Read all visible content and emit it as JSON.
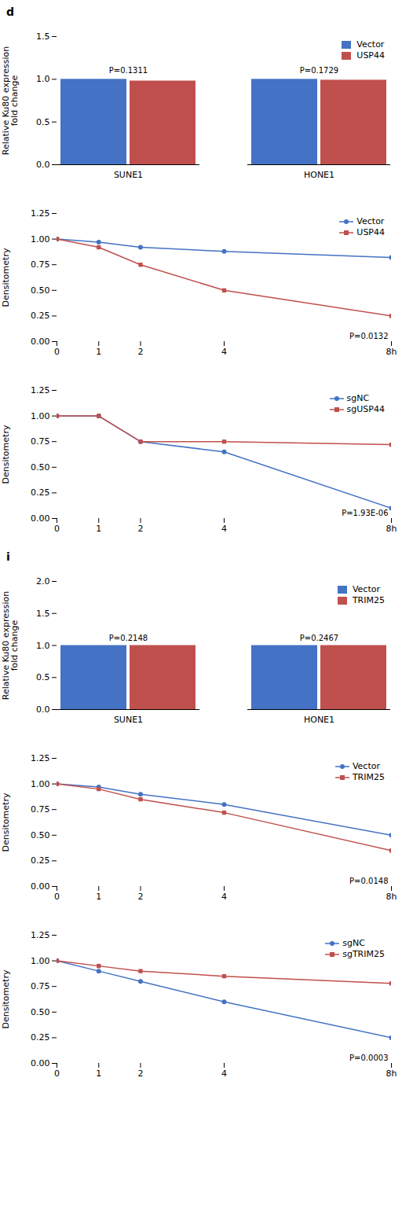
{
  "chart_data": [
    {
      "type": "bar",
      "title": "d",
      "categories": [
        "SUNE1",
        "HONE1"
      ],
      "series": [
        {
          "name": "Vector",
          "color": "#4472c4",
          "values": [
            1.0,
            1.0
          ]
        },
        {
          "name": "USP44",
          "color": "#c0504d",
          "values": [
            0.98,
            0.99
          ]
        }
      ],
      "ylabel": "Relative Ku80 expression\nfold change",
      "ylim": [
        0,
        1.5
      ],
      "yticks": [
        {
          "value": 0,
          "label": "0.0"
        },
        0.5,
        {
          "value": 1.0,
          "label": "1.0"
        },
        1.5
      ],
      "legend": "upper right",
      "annotations": [
        {
          "text": "P=0.1311",
          "x": "SUNE1",
          "y": 1.05
        },
        {
          "text": "P=0.1729",
          "x": "HONE1",
          "y": 1.05
        }
      ]
    },
    {
      "type": "line",
      "x": [
        0,
        1,
        2,
        4,
        8
      ],
      "xlim": [
        0,
        8
      ],
      "xticks": [
        0,
        1,
        2,
        4,
        {
          "value": 8,
          "label": "8h"
        }
      ],
      "series": [
        {
          "name": "Vector",
          "color": "#4472c4",
          "marker": "circle",
          "values": [
            1.0,
            0.97,
            0.92,
            0.88,
            0.82
          ]
        },
        {
          "name": "USP44",
          "color": "#c0504d",
          "marker": "square",
          "values": [
            1.0,
            0.92,
            0.75,
            0.5,
            0.25
          ]
        }
      ],
      "ylabel": "Densitometry",
      "ylim": [
        0,
        1.25
      ],
      "yticks": [
        {
          "value": 0,
          "label": "0.00"
        },
        0.25,
        {
          "value": 0.5,
          "label": "0.50"
        },
        0.75,
        {
          "value": 1.0,
          "label": "1.00"
        },
        1.25
      ],
      "legend": "upper right",
      "annotations": [
        {
          "text": "P=0.0132"
        }
      ]
    },
    {
      "type": "line",
      "x": [
        0,
        1,
        2,
        4,
        8
      ],
      "xlim": [
        0,
        8
      ],
      "xticks": [
        0,
        1,
        2,
        4,
        {
          "value": 8,
          "label": "8h"
        }
      ],
      "series": [
        {
          "name": "sgNC",
          "color": "#4472c4",
          "marker": "circle",
          "values": [
            1.0,
            1.0,
            0.75,
            0.65,
            0.1
          ]
        },
        {
          "name": "sgUSP44",
          "color": "#c0504d",
          "marker": "square",
          "values": [
            1.0,
            1.0,
            0.75,
            0.75,
            0.72
          ]
        }
      ],
      "ylabel": "Densitometry",
      "ylim": [
        0,
        1.25
      ],
      "yticks": [
        {
          "value": 0,
          "label": "0.00"
        },
        0.25,
        {
          "value": 0.5,
          "label": "0.50"
        },
        0.75,
        {
          "value": 1.0,
          "label": "1.00"
        },
        1.25
      ],
      "legend": "upper right",
      "annotations": [
        {
          "text": "P=1.93E-06"
        }
      ]
    },
    {
      "type": "bar",
      "title": "i",
      "categories": [
        "SUNE1",
        "HONE1"
      ],
      "series": [
        {
          "name": "Vector",
          "color": "#4472c4",
          "values": [
            1.0,
            1.0
          ]
        },
        {
          "name": "TRIM25",
          "color": "#c0504d",
          "values": [
            1.0,
            1.0
          ]
        }
      ],
      "ylabel": "Relative Ku80 expression\nfold change",
      "ylim": [
        0,
        2.0
      ],
      "yticks": [
        {
          "value": 0,
          "label": "0.0"
        },
        0.5,
        {
          "value": 1.0,
          "label": "1.0"
        },
        1.5,
        {
          "value": 2.0,
          "label": "2.0"
        }
      ],
      "legend": "upper right",
      "annotations": [
        {
          "text": "P=0.2148",
          "x": "SUNE1",
          "y": 1.05
        },
        {
          "text": "P=0.2467",
          "x": "HONE1",
          "y": 1.05
        }
      ]
    },
    {
      "type": "line",
      "x": [
        0,
        1,
        2,
        4,
        8
      ],
      "xlim": [
        0,
        8
      ],
      "xticks": [
        0,
        1,
        2,
        4,
        {
          "value": 8,
          "label": "8h"
        }
      ],
      "series": [
        {
          "name": "Vector",
          "color": "#4472c4",
          "marker": "circle",
          "values": [
            1.0,
            0.97,
            0.9,
            0.8,
            0.5
          ]
        },
        {
          "name": "TRIM25",
          "color": "#c0504d",
          "marker": "square",
          "values": [
            1.0,
            0.95,
            0.85,
            0.72,
            0.35
          ]
        }
      ],
      "ylabel": "Densitometry",
      "ylim": [
        0,
        1.25
      ],
      "yticks": [
        {
          "value": 0,
          "label": "0.00"
        },
        0.25,
        {
          "value": 0.5,
          "label": "0.50"
        },
        0.75,
        {
          "value": 1.0,
          "label": "1.00"
        },
        1.25
      ],
      "legend": "upper right",
      "annotations": [
        {
          "text": "P=0.0148"
        }
      ]
    },
    {
      "type": "line",
      "x": [
        0,
        1,
        2,
        4,
        8
      ],
      "xlim": [
        0,
        8
      ],
      "xticks": [
        0,
        1,
        2,
        4,
        {
          "value": 8,
          "label": "8h"
        }
      ],
      "series": [
        {
          "name": "sgNC",
          "color": "#4472c4",
          "marker": "circle",
          "values": [
            1.0,
            0.9,
            0.8,
            0.6,
            0.25
          ]
        },
        {
          "name": "sgTRIM25",
          "color": "#c0504d",
          "marker": "square",
          "values": [
            1.0,
            0.95,
            0.9,
            0.85,
            0.78
          ]
        }
      ],
      "ylabel": "Densitometry",
      "ylim": [
        0,
        1.25
      ],
      "yticks": [
        {
          "value": 0,
          "label": "0.00"
        },
        0.25,
        {
          "value": 0.5,
          "label": "0.50"
        },
        0.75,
        {
          "value": 1.0,
          "label": "1.00"
        },
        1.25
      ],
      "legend": "upper right",
      "annotations": [
        {
          "text": "P=0.0003"
        }
      ]
    }
  ]
}
